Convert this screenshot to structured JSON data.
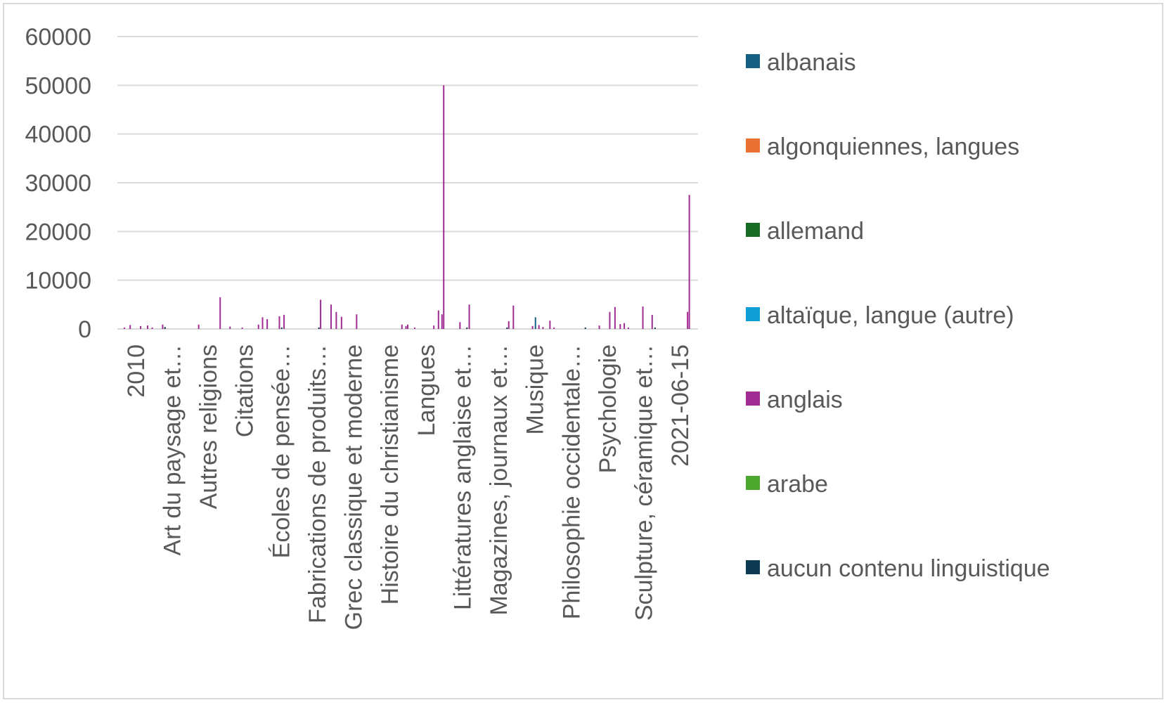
{
  "chart_data": {
    "type": "bar",
    "title": "",
    "xlabel": "",
    "ylabel": "",
    "ylim": [
      0,
      60000
    ],
    "yticks": [
      0,
      10000,
      20000,
      30000,
      40000,
      50000,
      60000
    ],
    "grid": true,
    "legend_position": "right",
    "x_tick_labels": [
      "2010",
      "Art du paysage et…",
      "Autres religions",
      "Citations",
      "Écoles de pensée…",
      "Fabrications de produits…",
      "Grec classique et moderne",
      "Histoire du christianisme",
      "Langues",
      "Littératures anglaise et…",
      "Magazines, journaux et…",
      "Musique",
      "Philosophie occidentale…",
      "Psychologie",
      "Sculpture, céramique et…",
      "2021-06-15"
    ],
    "series": [
      {
        "name": "albanais",
        "color": "#156082"
      },
      {
        "name": "algonquiennes, langues",
        "color": "#E97132"
      },
      {
        "name": "allemand",
        "color": "#196B24"
      },
      {
        "name": "altaïque, langue (autre)",
        "color": "#0F9ED5"
      },
      {
        "name": "anglais",
        "color": "#A02B93"
      },
      {
        "name": "arabe",
        "color": "#4EA72E"
      },
      {
        "name": "aucun contenu linguistique",
        "color": "#0E3A53"
      }
    ],
    "bars": [
      {
        "x": 0.012,
        "series": 4,
        "value": 300
      },
      {
        "x": 0.022,
        "series": 4,
        "value": 800
      },
      {
        "x": 0.04,
        "series": 4,
        "value": 600
      },
      {
        "x": 0.052,
        "series": 4,
        "value": 700
      },
      {
        "x": 0.06,
        "series": 4,
        "value": 300
      },
      {
        "x": 0.078,
        "series": 4,
        "value": 900
      },
      {
        "x": 0.082,
        "series": 6,
        "value": 400
      },
      {
        "x": 0.14,
        "series": 4,
        "value": 900
      },
      {
        "x": 0.177,
        "series": 4,
        "value": 6500
      },
      {
        "x": 0.194,
        "series": 4,
        "value": 500
      },
      {
        "x": 0.215,
        "series": 4,
        "value": 300
      },
      {
        "x": 0.243,
        "series": 4,
        "value": 900
      },
      {
        "x": 0.25,
        "series": 4,
        "value": 2400
      },
      {
        "x": 0.258,
        "series": 4,
        "value": 2000
      },
      {
        "x": 0.279,
        "series": 4,
        "value": 2600
      },
      {
        "x": 0.283,
        "series": 6,
        "value": 300
      },
      {
        "x": 0.287,
        "series": 4,
        "value": 2900
      },
      {
        "x": 0.347,
        "series": 6,
        "value": 300
      },
      {
        "x": 0.35,
        "series": 4,
        "value": 6000
      },
      {
        "x": 0.368,
        "series": 4,
        "value": 5000
      },
      {
        "x": 0.377,
        "series": 4,
        "value": 3500
      },
      {
        "x": 0.386,
        "series": 4,
        "value": 2500
      },
      {
        "x": 0.412,
        "series": 4,
        "value": 3000
      },
      {
        "x": 0.49,
        "series": 4,
        "value": 900
      },
      {
        "x": 0.497,
        "series": 4,
        "value": 600
      },
      {
        "x": 0.5,
        "series": 4,
        "value": 900
      },
      {
        "x": 0.512,
        "series": 4,
        "value": 300
      },
      {
        "x": 0.545,
        "series": 4,
        "value": 700
      },
      {
        "x": 0.553,
        "series": 4,
        "value": 3800
      },
      {
        "x": 0.559,
        "series": 4,
        "value": 3000
      },
      {
        "x": 0.562,
        "series": 4,
        "value": 50000
      },
      {
        "x": 0.59,
        "series": 4,
        "value": 1400
      },
      {
        "x": 0.606,
        "series": 4,
        "value": 5000
      },
      {
        "x": 0.602,
        "series": 6,
        "value": 300
      },
      {
        "x": 0.674,
        "series": 4,
        "value": 1600
      },
      {
        "x": 0.671,
        "series": 6,
        "value": 300
      },
      {
        "x": 0.682,
        "series": 4,
        "value": 4800
      },
      {
        "x": 0.715,
        "series": 4,
        "value": 600
      },
      {
        "x": 0.72,
        "series": 0,
        "value": 2400
      },
      {
        "x": 0.726,
        "series": 4,
        "value": 800
      },
      {
        "x": 0.733,
        "series": 4,
        "value": 400
      },
      {
        "x": 0.745,
        "series": 4,
        "value": 1700
      },
      {
        "x": 0.752,
        "series": 4,
        "value": 300
      },
      {
        "x": 0.806,
        "series": 6,
        "value": 300
      },
      {
        "x": 0.83,
        "series": 4,
        "value": 700
      },
      {
        "x": 0.848,
        "series": 4,
        "value": 3500
      },
      {
        "x": 0.857,
        "series": 4,
        "value": 4500
      },
      {
        "x": 0.866,
        "series": 4,
        "value": 1000
      },
      {
        "x": 0.873,
        "series": 4,
        "value": 1200
      },
      {
        "x": 0.88,
        "series": 4,
        "value": 300
      },
      {
        "x": 0.905,
        "series": 4,
        "value": 4600
      },
      {
        "x": 0.921,
        "series": 4,
        "value": 2900
      },
      {
        "x": 0.926,
        "series": 6,
        "value": 300
      },
      {
        "x": 0.982,
        "series": 4,
        "value": 3500
      },
      {
        "x": 0.985,
        "series": 4,
        "value": 27500
      }
    ]
  }
}
